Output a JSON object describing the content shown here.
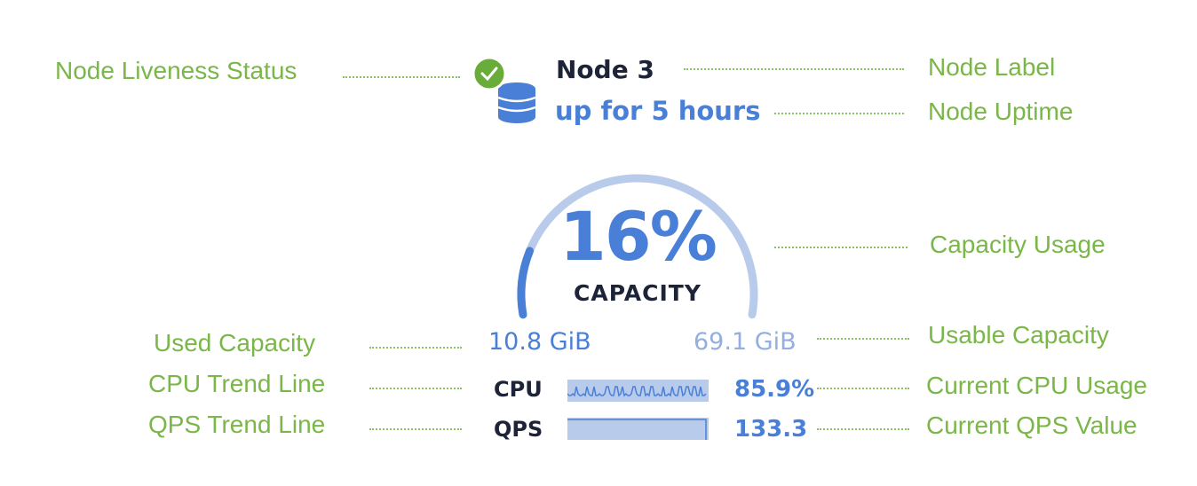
{
  "annotations": {
    "liveness": "Node Liveness Status",
    "label": "Node Label",
    "uptime": "Node Uptime",
    "capacity_usage": "Capacity Usage",
    "used_capacity": "Used Capacity",
    "usable_capacity": "Usable Capacity",
    "cpu_trend": "CPU Trend Line",
    "cpu_current": "Current CPU Usage",
    "qps_trend": "QPS Trend Line",
    "qps_current": "Current QPS Value"
  },
  "node": {
    "name": "Node 3",
    "uptime": "up for 5 hours",
    "status_icon": "check-circle-icon",
    "node_icon": "database-icon",
    "status_color": "#6aac3a"
  },
  "capacity": {
    "percent_label": "16%",
    "percent": 16,
    "caption": "CAPACITY",
    "used": "10.8 GiB",
    "usable": "69.1 GiB"
  },
  "metrics": {
    "cpu": {
      "label": "CPU",
      "value": "85.9%"
    },
    "qps": {
      "label": "QPS",
      "value": "133.3"
    }
  },
  "colors": {
    "accent": "#4a7fd8",
    "track": "#b8cbea",
    "annotation": "#7ab648",
    "text": "#1d2437"
  }
}
